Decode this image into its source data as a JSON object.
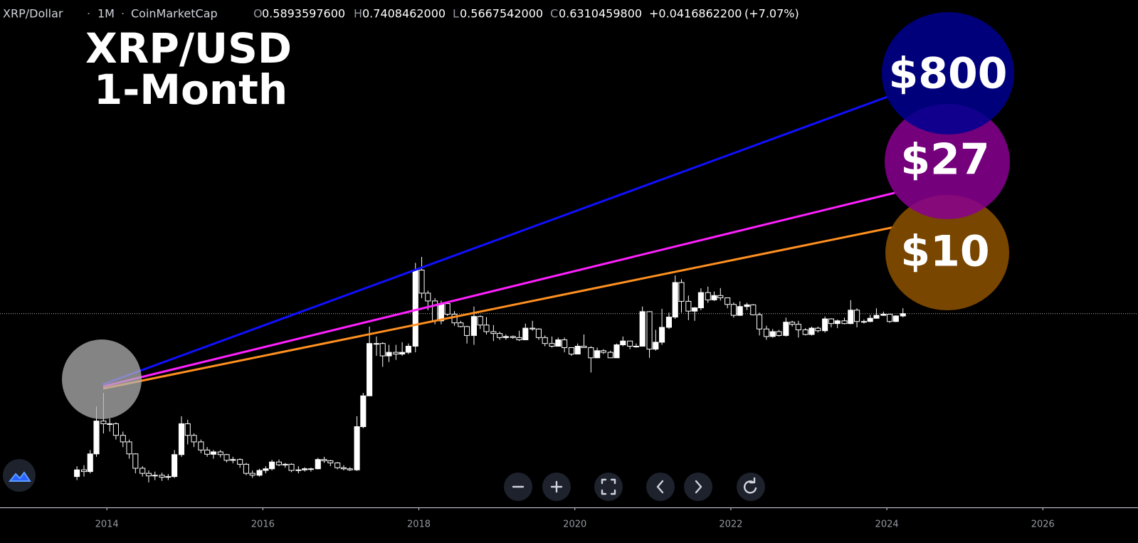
{
  "chart_data": {
    "type": "candlestick",
    "header": {
      "symbol": "XRP/Dollar",
      "separator": "·",
      "interval": "1M",
      "source": "CoinMarketCap",
      "ohlc": [
        {
          "key": "O",
          "value": "0.5893597600"
        },
        {
          "key": "H",
          "value": "0.7408462000"
        },
        {
          "key": "L",
          "value": "0.5667542000"
        },
        {
          "key": "C",
          "value": "0.6310459800"
        }
      ],
      "change": "+0.0416862200",
      "change_pct": "(+7.07%)"
    },
    "title": [
      "XRP/USD",
      "1-Month"
    ],
    "annotations": [
      "$800",
      "$27",
      "$10"
    ],
    "log_scale": true,
    "color": "#ffffff",
    "price_line": true,
    "ylim": [
      0.002,
      7000
    ],
    "xlim": [
      2012.63,
      2027.22
    ],
    "xticks": [
      2014,
      2016,
      2018,
      2020,
      2022,
      2024,
      2026
    ],
    "x": [
      2013.58,
      2013.67,
      2013.75,
      2013.83,
      2013.92,
      2014,
      2014.08,
      2014.17,
      2014.25,
      2014.33,
      2014.42,
      2014.5,
      2014.58,
      2014.67,
      2014.75,
      2014.83,
      2014.92,
      2015,
      2015.08,
      2015.17,
      2015.25,
      2015.33,
      2015.42,
      2015.5,
      2015.58,
      2015.67,
      2015.75,
      2015.83,
      2015.92,
      2016,
      2016.08,
      2016.17,
      2016.25,
      2016.33,
      2016.42,
      2016.5,
      2016.58,
      2016.67,
      2016.75,
      2016.83,
      2016.92,
      2017,
      2017.08,
      2017.17,
      2017.25,
      2017.33,
      2017.42,
      2017.5,
      2017.58,
      2017.67,
      2017.75,
      2017.83,
      2017.92,
      2018,
      2018.08,
      2018.17,
      2018.25,
      2018.33,
      2018.42,
      2018.5,
      2018.58,
      2018.67,
      2018.75,
      2018.83,
      2018.92,
      2019,
      2019.08,
      2019.17,
      2019.25,
      2019.33,
      2019.42,
      2019.5,
      2019.58,
      2019.67,
      2019.75,
      2019.83,
      2019.92,
      2020,
      2020.08,
      2020.17,
      2020.25,
      2020.33,
      2020.42,
      2020.5,
      2020.58,
      2020.67,
      2020.75,
      2020.83,
      2020.92,
      2021,
      2021.08,
      2021.17,
      2021.25,
      2021.33,
      2021.42,
      2021.5,
      2021.58,
      2021.67,
      2021.75,
      2021.83,
      2021.92,
      2022,
      2022.08,
      2022.17,
      2022.25,
      2022.33,
      2022.42,
      2022.5,
      2022.58,
      2022.67,
      2022.75,
      2022.83,
      2022.92,
      2023,
      2023.08,
      2023.17,
      2023.25,
      2023.33,
      2023.42,
      2023.5,
      2023.58,
      2023.67,
      2023.75,
      2023.83,
      2023.92,
      2024,
      2024.08,
      2024.17
    ],
    "candles": [
      [
        0.005,
        0.0068,
        0.0045,
        0.0061
      ],
      [
        0.0061,
        0.007,
        0.005,
        0.0058
      ],
      [
        0.0058,
        0.011,
        0.0055,
        0.0098
      ],
      [
        0.0098,
        0.04,
        0.009,
        0.026
      ],
      [
        0.026,
        0.06,
        0.018,
        0.024
      ],
      [
        0.024,
        0.028,
        0.019,
        0.024
      ],
      [
        0.024,
        0.025,
        0.015,
        0.017
      ],
      [
        0.017,
        0.019,
        0.012,
        0.014
      ],
      [
        0.014,
        0.015,
        0.0085,
        0.0098
      ],
      [
        0.0098,
        0.01,
        0.0055,
        0.0064
      ],
      [
        0.0064,
        0.0068,
        0.005,
        0.0055
      ],
      [
        0.0055,
        0.006,
        0.0042,
        0.0051
      ],
      [
        0.0051,
        0.0058,
        0.0045,
        0.0052
      ],
      [
        0.0052,
        0.0056,
        0.0044,
        0.0049
      ],
      [
        0.0049,
        0.0054,
        0.0045,
        0.005
      ],
      [
        0.005,
        0.011,
        0.0048,
        0.0096
      ],
      [
        0.0096,
        0.03,
        0.009,
        0.024
      ],
      [
        0.024,
        0.027,
        0.013,
        0.017
      ],
      [
        0.017,
        0.018,
        0.012,
        0.014
      ],
      [
        0.014,
        0.015,
        0.01,
        0.011
      ],
      [
        0.011,
        0.012,
        0.009,
        0.0097
      ],
      [
        0.0097,
        0.011,
        0.0085,
        0.0104
      ],
      [
        0.0104,
        0.011,
        0.0088,
        0.0096
      ],
      [
        0.0096,
        0.0098,
        0.0076,
        0.0081
      ],
      [
        0.0081,
        0.009,
        0.0074,
        0.0083
      ],
      [
        0.0083,
        0.0086,
        0.0065,
        0.0072
      ],
      [
        0.0072,
        0.0075,
        0.0052,
        0.0055
      ],
      [
        0.0055,
        0.006,
        0.0048,
        0.0052
      ],
      [
        0.0052,
        0.0063,
        0.005,
        0.006
      ],
      [
        0.006,
        0.0068,
        0.0055,
        0.0063
      ],
      [
        0.0063,
        0.0082,
        0.006,
        0.0077
      ],
      [
        0.0077,
        0.0083,
        0.0068,
        0.0071
      ],
      [
        0.0071,
        0.0075,
        0.0065,
        0.0072
      ],
      [
        0.0072,
        0.0074,
        0.0057,
        0.006
      ],
      [
        0.006,
        0.0068,
        0.0055,
        0.0061
      ],
      [
        0.0061,
        0.0066,
        0.0058,
        0.0063
      ],
      [
        0.0063,
        0.0065,
        0.0058,
        0.0063
      ],
      [
        0.0063,
        0.0087,
        0.0062,
        0.0083
      ],
      [
        0.0083,
        0.009,
        0.0075,
        0.008
      ],
      [
        0.008,
        0.0082,
        0.0068,
        0.0075
      ],
      [
        0.0075,
        0.0077,
        0.0062,
        0.0065
      ],
      [
        0.0065,
        0.007,
        0.006,
        0.0063
      ],
      [
        0.0063,
        0.0066,
        0.0059,
        0.0061
      ],
      [
        0.0061,
        0.03,
        0.0059,
        0.022
      ],
      [
        0.022,
        0.06,
        0.021,
        0.055
      ],
      [
        0.055,
        0.43,
        0.055,
        0.26
      ],
      [
        0.26,
        0.32,
        0.18,
        0.26
      ],
      [
        0.26,
        0.27,
        0.13,
        0.18
      ],
      [
        0.18,
        0.25,
        0.15,
        0.2
      ],
      [
        0.2,
        0.25,
        0.16,
        0.19
      ],
      [
        0.19,
        0.27,
        0.18,
        0.2
      ],
      [
        0.2,
        0.26,
        0.19,
        0.24
      ],
      [
        0.24,
        2.85,
        0.2,
        2.3
      ],
      [
        2.3,
        3.4,
        1.0,
        1.16
      ],
      [
        1.16,
        1.25,
        0.7,
        0.92
      ],
      [
        0.92,
        1.0,
        0.46,
        0.51
      ],
      [
        0.51,
        0.93,
        0.46,
        0.85
      ],
      [
        0.85,
        0.88,
        0.59,
        0.62
      ],
      [
        0.62,
        0.68,
        0.44,
        0.48
      ],
      [
        0.48,
        0.51,
        0.42,
        0.43
      ],
      [
        0.43,
        0.44,
        0.26,
        0.33
      ],
      [
        0.33,
        0.78,
        0.25,
        0.58
      ],
      [
        0.58,
        0.6,
        0.4,
        0.45
      ],
      [
        0.45,
        0.57,
        0.34,
        0.37
      ],
      [
        0.37,
        0.45,
        0.28,
        0.35
      ],
      [
        0.35,
        0.37,
        0.29,
        0.31
      ],
      [
        0.31,
        0.34,
        0.29,
        0.32
      ],
      [
        0.32,
        0.33,
        0.3,
        0.31
      ],
      [
        0.31,
        0.38,
        0.28,
        0.29
      ],
      [
        0.29,
        0.47,
        0.29,
        0.41
      ],
      [
        0.41,
        0.51,
        0.38,
        0.4
      ],
      [
        0.4,
        0.41,
        0.29,
        0.31
      ],
      [
        0.31,
        0.33,
        0.24,
        0.26
      ],
      [
        0.26,
        0.32,
        0.23,
        0.24
      ],
      [
        0.24,
        0.31,
        0.24,
        0.29
      ],
      [
        0.29,
        0.31,
        0.2,
        0.23
      ],
      [
        0.23,
        0.23,
        0.18,
        0.19
      ],
      [
        0.19,
        0.26,
        0.19,
        0.24
      ],
      [
        0.24,
        0.34,
        0.23,
        0.23
      ],
      [
        0.23,
        0.24,
        0.11,
        0.17
      ],
      [
        0.17,
        0.23,
        0.17,
        0.21
      ],
      [
        0.21,
        0.22,
        0.19,
        0.2
      ],
      [
        0.2,
        0.21,
        0.17,
        0.17
      ],
      [
        0.17,
        0.26,
        0.17,
        0.25
      ],
      [
        0.25,
        0.32,
        0.24,
        0.28
      ],
      [
        0.28,
        0.28,
        0.22,
        0.24
      ],
      [
        0.24,
        0.26,
        0.23,
        0.24
      ],
      [
        0.24,
        0.78,
        0.24,
        0.67
      ],
      [
        0.67,
        0.68,
        0.17,
        0.22
      ],
      [
        0.22,
        0.39,
        0.21,
        0.27
      ],
      [
        0.27,
        0.73,
        0.25,
        0.42
      ],
      [
        0.42,
        0.65,
        0.4,
        0.57
      ],
      [
        0.57,
        1.96,
        0.54,
        1.59
      ],
      [
        1.59,
        1.75,
        0.65,
        0.91
      ],
      [
        0.91,
        1.08,
        0.52,
        0.68
      ],
      [
        0.68,
        0.77,
        0.51,
        0.75
      ],
      [
        0.75,
        1.34,
        0.7,
        1.18
      ],
      [
        1.18,
        1.41,
        0.87,
        0.95
      ],
      [
        0.95,
        1.22,
        0.92,
        1.08
      ],
      [
        1.08,
        1.35,
        0.93,
        1.01
      ],
      [
        1.01,
        1.02,
        0.74,
        0.83
      ],
      [
        0.83,
        0.88,
        0.56,
        0.6
      ],
      [
        0.6,
        0.91,
        0.59,
        0.78
      ],
      [
        0.78,
        0.87,
        0.7,
        0.82
      ],
      [
        0.82,
        0.84,
        0.6,
        0.61
      ],
      [
        0.61,
        0.65,
        0.33,
        0.4
      ],
      [
        0.4,
        0.44,
        0.29,
        0.32
      ],
      [
        0.32,
        0.4,
        0.31,
        0.37
      ],
      [
        0.37,
        0.39,
        0.32,
        0.33
      ],
      [
        0.33,
        0.56,
        0.32,
        0.49
      ],
      [
        0.49,
        0.51,
        0.43,
        0.46
      ],
      [
        0.46,
        0.51,
        0.31,
        0.39
      ],
      [
        0.39,
        0.41,
        0.33,
        0.34
      ],
      [
        0.34,
        0.43,
        0.33,
        0.41
      ],
      [
        0.41,
        0.43,
        0.36,
        0.38
      ],
      [
        0.38,
        0.58,
        0.36,
        0.54
      ],
      [
        0.54,
        0.55,
        0.42,
        0.47
      ],
      [
        0.47,
        0.53,
        0.41,
        0.51
      ],
      [
        0.51,
        0.56,
        0.46,
        0.47
      ],
      [
        0.47,
        0.94,
        0.46,
        0.7
      ],
      [
        0.7,
        0.74,
        0.42,
        0.5
      ],
      [
        0.5,
        0.53,
        0.47,
        0.5
      ],
      [
        0.5,
        0.61,
        0.49,
        0.55
      ],
      [
        0.55,
        0.74,
        0.55,
        0.6
      ],
      [
        0.6,
        0.67,
        0.59,
        0.62
      ],
      [
        0.62,
        0.63,
        0.48,
        0.5
      ],
      [
        0.5,
        0.6,
        0.49,
        0.58935976
      ],
      [
        0.58935976,
        0.7408462,
        0.5667542,
        0.63104598
      ]
    ]
  }
}
